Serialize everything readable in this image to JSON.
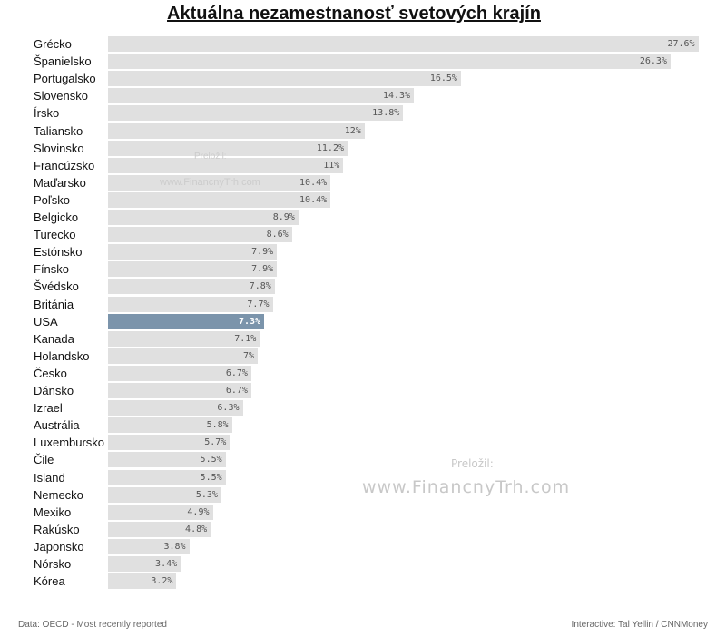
{
  "chart_data": {
    "type": "bar",
    "orientation": "horizontal",
    "title": "Aktuálna nezamestnanosť svetových krajín",
    "categories": [
      "Grécko",
      "Španielsko",
      "Portugalsko",
      "Slovensko",
      "Írsko",
      "Taliansko",
      "Slovinsko",
      "Francúzsko",
      "Maďarsko",
      "Poľsko",
      "Belgicko",
      "Turecko",
      "Estónsko",
      "Fínsko",
      "Švédsko",
      "Británia",
      "USA",
      "Kanada",
      "Holandsko",
      "Česko",
      "Dánsko",
      "Izrael",
      "Austrália",
      "Luxembursko",
      "Čile",
      "Island",
      "Nemecko",
      "Mexiko",
      "Rakúsko",
      "Japonsko",
      "Nórsko",
      "Kórea"
    ],
    "values": [
      27.6,
      26.3,
      16.5,
      14.3,
      13.8,
      12,
      11.2,
      11,
      10.4,
      10.4,
      8.9,
      8.6,
      7.9,
      7.9,
      7.8,
      7.7,
      7.3,
      7.1,
      7,
      6.7,
      6.7,
      6.3,
      5.8,
      5.7,
      5.5,
      5.5,
      5.3,
      4.9,
      4.8,
      3.8,
      3.4,
      3.2
    ],
    "value_labels": [
      "27.6%",
      "26.3%",
      "16.5%",
      "14.3%",
      "13.8%",
      "12%",
      "11.2%",
      "11%",
      "10.4%",
      "10.4%",
      "8.9%",
      "8.6%",
      "7.9%",
      "7.9%",
      "7.8%",
      "7.7%",
      "7.3%",
      "7.1%",
      "7%",
      "6.7%",
      "6.7%",
      "6.3%",
      "5.8%",
      "5.7%",
      "5.5%",
      "5.5%",
      "5.3%",
      "4.9%",
      "4.8%",
      "3.8%",
      "3.4%",
      "3.2%"
    ],
    "highlighted": "USA",
    "xlim": [
      0,
      28
    ],
    "grid": false
  },
  "colors": {
    "bar": "#e0e0e0",
    "highlight": "#7b94ab"
  },
  "watermark": {
    "small_label": "Preložil:",
    "small_url": "www.FinancnyTrh.com",
    "large_label": "Preložil:",
    "large_url": "www.FinancnyTrh.com"
  },
  "footer": {
    "source": "Data: OECD - Most recently reported",
    "credit": "Interactive: Tal Yellin / CNNMoney"
  }
}
